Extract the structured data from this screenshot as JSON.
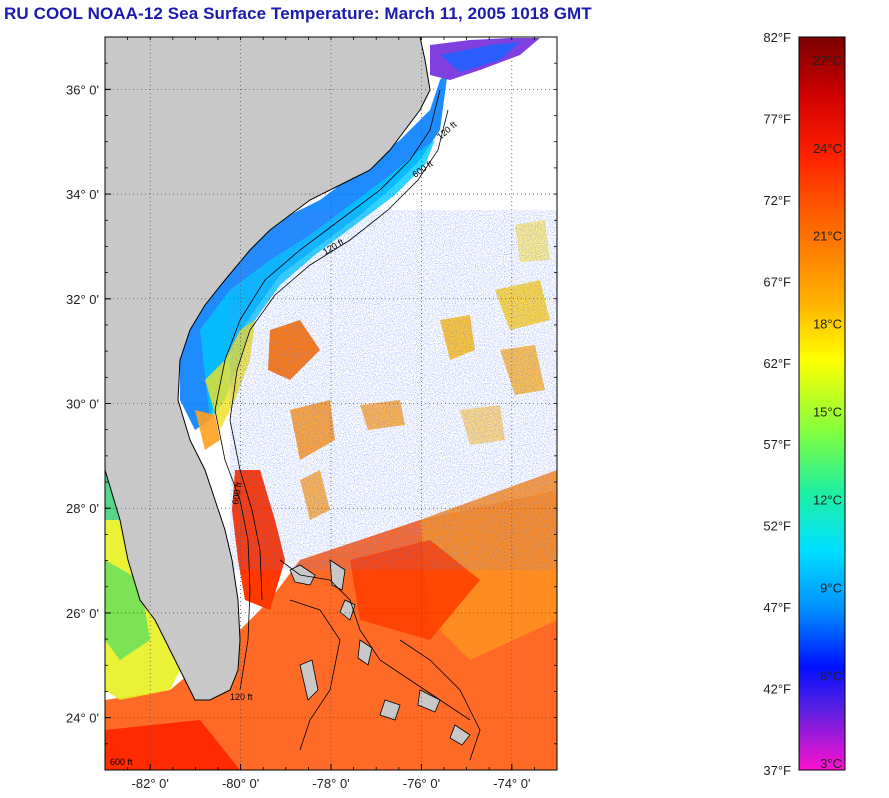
{
  "title": "RU COOL  NOAA-12  Sea Surface Temperature:  March 11, 2005 1018 GMT",
  "map": {
    "lon_range": [
      -83,
      -73
    ],
    "lat_range": [
      23,
      37
    ],
    "x_ticks": [
      {
        "lon": -82,
        "label": "-82° 0'"
      },
      {
        "lon": -80,
        "label": "-80° 0'"
      },
      {
        "lon": -78,
        "label": "-78° 0'"
      },
      {
        "lon": -76,
        "label": "-76° 0'"
      },
      {
        "lon": -74,
        "label": "-74° 0'"
      }
    ],
    "y_ticks": [
      {
        "lat": 36,
        "label": "36° 0'"
      },
      {
        "lat": 34,
        "label": "34° 0'"
      },
      {
        "lat": 32,
        "label": "32° 0'"
      },
      {
        "lat": 30,
        "label": "30° 0'"
      },
      {
        "lat": 28,
        "label": "28° 0'"
      },
      {
        "lat": 26,
        "label": "26° 0'"
      },
      {
        "lat": 24,
        "label": "24° 0'"
      }
    ],
    "contour_labels": [
      "120 ft",
      "600 ft",
      "120 ft",
      "600 ft",
      "120 ft",
      "600 ft"
    ],
    "colors": {
      "land": "#c8c8c8",
      "ocean_nodata": "#ffffff",
      "grid": "#555555"
    }
  },
  "colorbar": {
    "fahrenheit_labels": [
      "82°F",
      "77°F",
      "72°F",
      "67°F",
      "62°F",
      "57°F",
      "52°F",
      "47°F",
      "42°F",
      "37°F"
    ],
    "celsius_labels": [
      "27°C",
      "24°C",
      "21°C",
      "18°C",
      "15°C",
      "12°C",
      "9°C",
      "6°C",
      "3°C"
    ],
    "f_range": [
      37,
      82
    ],
    "gradient_stops": [
      {
        "t": 0.0,
        "color": "#7a0000"
      },
      {
        "t": 0.08,
        "color": "#d00000"
      },
      {
        "t": 0.16,
        "color": "#ff2000"
      },
      {
        "t": 0.26,
        "color": "#ff6a00"
      },
      {
        "t": 0.36,
        "color": "#ffb000"
      },
      {
        "t": 0.44,
        "color": "#ffff00"
      },
      {
        "t": 0.54,
        "color": "#80ff40"
      },
      {
        "t": 0.62,
        "color": "#20f0a0"
      },
      {
        "t": 0.7,
        "color": "#00e0ff"
      },
      {
        "t": 0.78,
        "color": "#0090ff"
      },
      {
        "t": 0.86,
        "color": "#0010ff"
      },
      {
        "t": 0.92,
        "color": "#6020e0"
      },
      {
        "t": 1.0,
        "color": "#ff10d0"
      }
    ]
  }
}
